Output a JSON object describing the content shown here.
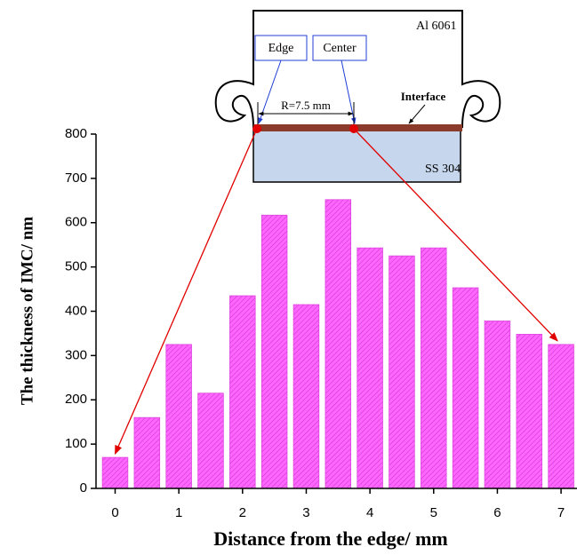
{
  "chart_data": {
    "type": "bar",
    "xlabel": "Distance from the edge/ mm",
    "ylabel": "The thickness of IMC/ nm",
    "x": [
      0,
      0.5,
      1,
      1.5,
      2,
      2.5,
      3,
      3.5,
      4,
      4.5,
      5,
      5.5,
      6,
      6.5,
      7
    ],
    "values": [
      70,
      160,
      325,
      215,
      435,
      617,
      415,
      652,
      543,
      525,
      543,
      453,
      378,
      348,
      325
    ],
    "color": "#ff66ff",
    "xlim": [
      -0.3,
      7.25
    ],
    "xticks": [
      0,
      1,
      2,
      3,
      4,
      5,
      6,
      7
    ],
    "ylim": [
      0,
      800
    ],
    "yticks": [
      0,
      100,
      200,
      300,
      400,
      500,
      600,
      700,
      800
    ],
    "annotations": [
      "Al 6061",
      "Edge",
      "Center",
      "R=7.5 mm",
      "Interface",
      "SS 304"
    ]
  }
}
